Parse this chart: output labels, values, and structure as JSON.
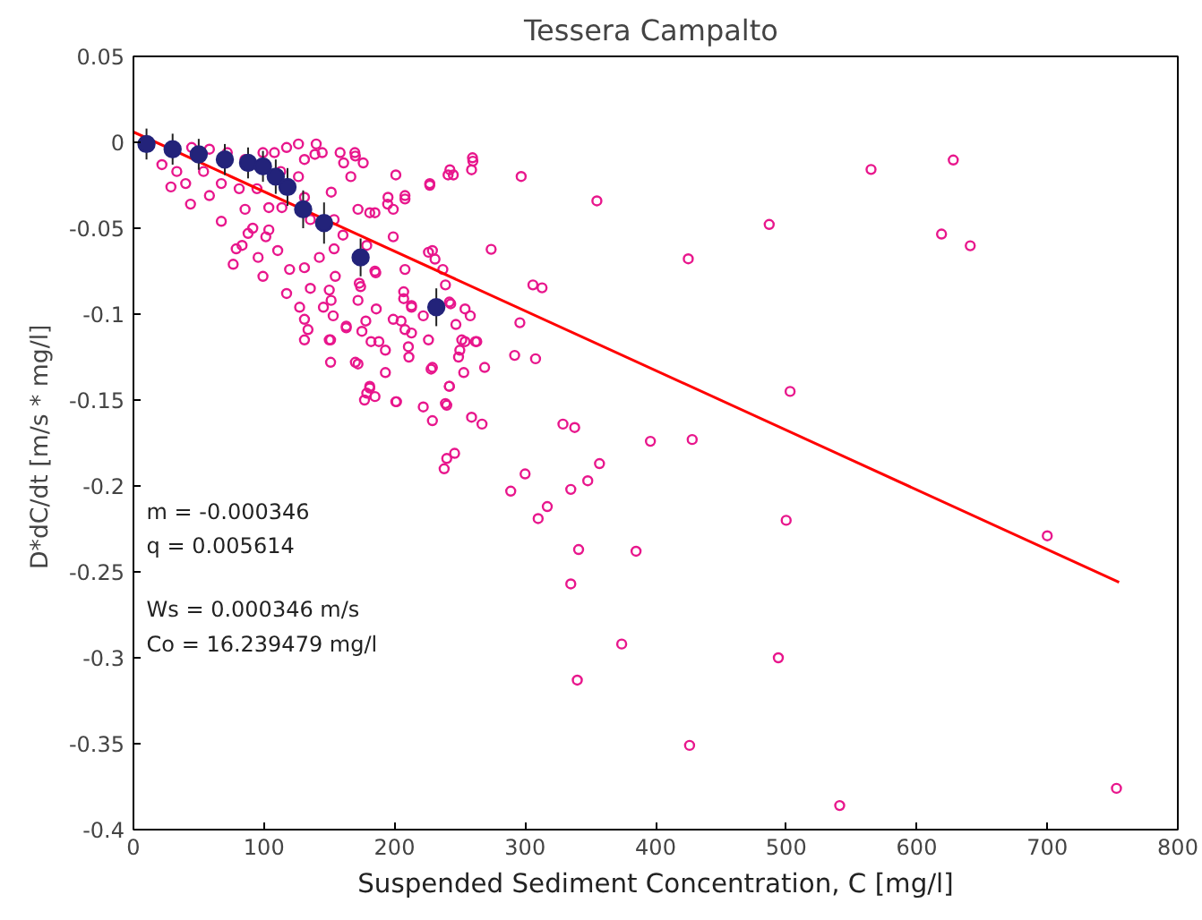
{
  "chart_data": {
    "type": "scatter",
    "title": "Tessera  Campalto",
    "xlabel": "Suspended Sediment Concentration, C [mg/l]",
    "ylabel": "D*dC/dt  [m/s * mg/l]",
    "xlim": [
      0,
      800
    ],
    "ylim": [
      -0.4,
      0.05
    ],
    "xticks": [
      0,
      100,
      200,
      300,
      400,
      500,
      600,
      700,
      800
    ],
    "yticks": [
      -0.4,
      -0.35,
      -0.3,
      -0.25,
      -0.2,
      -0.15,
      -0.1,
      -0.05,
      0,
      0.05
    ],
    "grid": false,
    "annotations": [
      "m = -0.000346",
      "q = 0.005614",
      "Ws = 0.000346 m/s",
      "Co = 16.239479 mg/l"
    ],
    "series": [
      {
        "marker": "circle",
        "color": "#e8168c",
        "x": [
          565,
          628,
          619,
          641,
          487,
          425,
          355,
          297,
          274,
          306,
          313,
          296,
          292,
          308,
          503,
          329,
          338,
          396,
          428,
          357,
          348,
          335,
          300,
          289,
          317,
          310,
          500,
          700,
          341,
          385,
          335,
          374,
          494,
          340,
          426,
          541,
          753,
          260,
          259,
          241,
          245,
          227,
          201,
          208,
          199,
          195,
          185,
          170,
          176,
          161,
          258,
          254,
          247,
          243,
          239,
          237,
          231,
          226,
          207,
          207,
          213,
          213,
          211,
          199,
          201,
          185,
          177,
          181,
          193,
          193,
          188,
          186,
          185,
          173,
          175,
          172,
          163,
          151,
          151,
          150,
          153,
          222,
          229,
          239,
          242,
          253,
          259,
          267,
          269,
          262,
          254,
          250,
          238,
          240,
          246,
          228,
          229,
          28.7,
          43.7,
          58.2,
          67.3,
          78.7,
          76.4,
          91.4,
          85.5,
          103.7,
          113.7,
          126.4,
          140,
          139,
          144.6,
          158.3,
          169.6,
          166.5,
          131,
          135.5,
          151.5,
          153.7,
          160.5,
          172,
          181,
          194.7,
          208,
          227,
          242.4,
          259.7,
          199,
          178.7,
          185.6,
          208,
          153.7,
          142.4,
          131,
          117.3,
          119.6,
          110.5,
          99.2,
          95.5,
          101.4,
          83.2,
          87.8,
          127.3,
          131,
          145.5,
          150,
          133.7,
          170,
          182,
          178,
          208,
          210.6,
          205,
          222,
          242,
          226,
          229,
          242,
          240,
          251.5,
          249,
          263,
          178.7,
          181,
          201.5,
          213,
          131,
          135.5,
          154.6,
          151.4,
          172,
          163,
          174,
          40,
          53.7,
          67.3,
          81,
          94.6,
          103.7,
          108,
          117.3,
          126.4,
          131,
          112.8,
          99.2,
          85.5,
          71.9,
          58.2,
          44.6,
          33.2,
          21.8
        ],
        "values": [
          -0.0158,
          -0.0103,
          -0.0534,
          -0.0602,
          -0.0478,
          -0.0678,
          -0.0341,
          -0.0199,
          -0.0623,
          -0.083,
          -0.0847,
          -0.105,
          -0.124,
          -0.126,
          -0.145,
          -0.164,
          -0.166,
          -0.174,
          -0.173,
          -0.187,
          -0.197,
          -0.202,
          -0.193,
          -0.203,
          -0.212,
          -0.219,
          -0.22,
          -0.229,
          -0.237,
          -0.238,
          -0.257,
          -0.292,
          -0.3,
          -0.313,
          -0.351,
          -0.386,
          -0.376,
          -0.011,
          -0.016,
          -0.019,
          -0.019,
          -0.025,
          -0.019,
          -0.033,
          -0.039,
          -0.032,
          -0.041,
          -0.008,
          -0.012,
          -0.012,
          -0.101,
          -0.097,
          -0.106,
          -0.094,
          -0.083,
          -0.074,
          -0.068,
          -0.064,
          -0.087,
          -0.091,
          -0.095,
          -0.111,
          -0.125,
          -0.103,
          -0.151,
          -0.148,
          -0.15,
          -0.143,
          -0.134,
          -0.121,
          -0.116,
          -0.097,
          -0.075,
          -0.082,
          -0.11,
          -0.129,
          -0.107,
          -0.115,
          -0.128,
          -0.086,
          -0.101,
          -0.154,
          -0.162,
          -0.152,
          -0.142,
          -0.134,
          -0.16,
          -0.164,
          -0.131,
          -0.116,
          -0.116,
          -0.121,
          -0.19,
          -0.184,
          -0.181,
          -0.132,
          -0.063,
          -0.026,
          -0.036,
          -0.031,
          -0.046,
          -0.062,
          -0.071,
          -0.05,
          -0.039,
          -0.051,
          -0.038,
          -0.02,
          -0.001,
          -0.007,
          -0.006,
          -0.006,
          -0.006,
          -0.02,
          -0.032,
          -0.045,
          -0.029,
          -0.045,
          -0.054,
          -0.039,
          -0.041,
          -0.036,
          -0.031,
          -0.024,
          -0.016,
          -0.009,
          -0.055,
          -0.06,
          -0.076,
          -0.074,
          -0.062,
          -0.067,
          -0.073,
          -0.088,
          -0.074,
          -0.063,
          -0.078,
          -0.067,
          -0.055,
          -0.06,
          -0.053,
          -0.096,
          -0.103,
          -0.096,
          -0.115,
          -0.109,
          -0.128,
          -0.116,
          -0.104,
          -0.109,
          -0.119,
          -0.104,
          -0.101,
          -0.093,
          -0.115,
          -0.131,
          -0.142,
          -0.153,
          -0.115,
          -0.125,
          -0.116,
          -0.146,
          -0.142,
          -0.151,
          -0.096,
          -0.115,
          -0.085,
          -0.078,
          -0.092,
          -0.092,
          -0.108,
          -0.084,
          -0.024,
          -0.017,
          -0.024,
          -0.027,
          -0.027,
          -0.038,
          -0.006,
          -0.003,
          -0.001,
          -0.01,
          -0.017,
          -0.006,
          -0.01,
          -0.006,
          -0.004,
          -0.003,
          -0.017,
          -0.013
        ]
      },
      {
        "marker": "circle",
        "color": "#23237a",
        "x": [
          10,
          30,
          50,
          70,
          87.8,
          99.2,
          109,
          118,
          130,
          146,
          174,
          232
        ],
        "values": [
          -0.001,
          -0.004,
          -0.007,
          -0.01,
          -0.012,
          -0.014,
          -0.02,
          -0.026,
          -0.039,
          -0.047,
          -0.067,
          -0.096
        ],
        "errors": [
          0.009,
          0.009,
          0.009,
          0.009,
          0.009,
          0.009,
          0.01,
          0.011,
          0.011,
          0.012,
          0.011,
          0.011
        ]
      },
      {
        "type": "line",
        "color": "#ff0000",
        "x": [
          0,
          755
        ],
        "values": [
          0.006,
          -0.256
        ]
      }
    ]
  }
}
